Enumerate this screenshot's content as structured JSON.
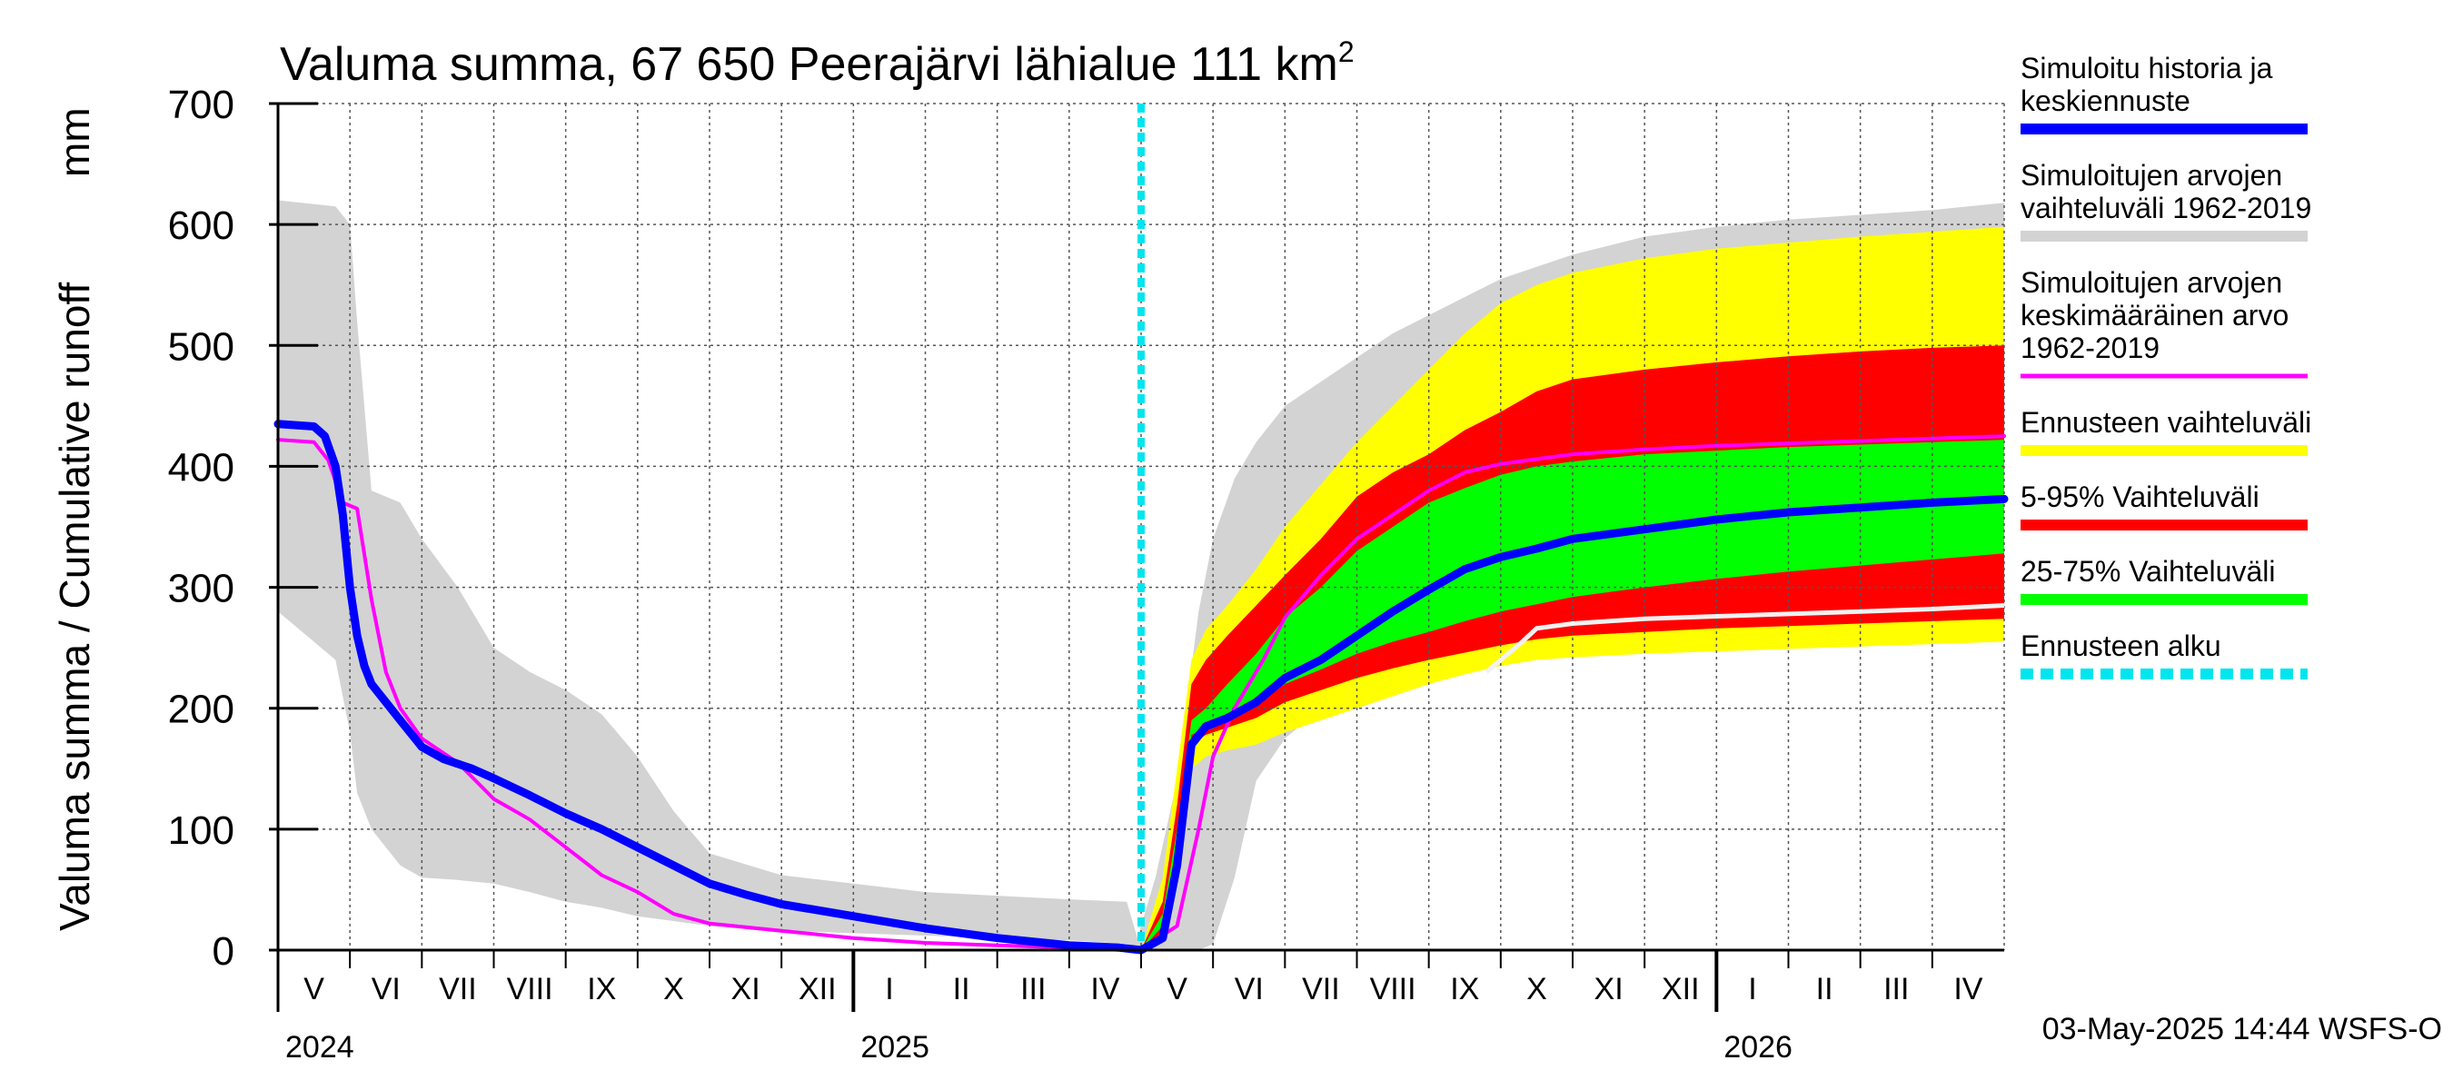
{
  "chart_data": {
    "type": "area",
    "title": "Valuma summa, 67 650 Peerajärvi lähialue 111 km²",
    "title_main": "Valuma summa, 67 650 Peerajärvi lähialue 111 km",
    "title_sup": "2",
    "ylabel": "Valuma summa / Cumulative runoff",
    "yunit": "mm",
    "ylim": [
      0,
      700
    ],
    "yticks": [
      "0",
      "100",
      "200",
      "300",
      "400",
      "500",
      "600",
      "700"
    ],
    "xlim": [
      0,
      24
    ],
    "grid": true,
    "legend_position": "right",
    "months": [
      {
        "label": "V",
        "start": 0
      },
      {
        "label": "VI",
        "start": 1
      },
      {
        "label": "VII",
        "start": 2
      },
      {
        "label": "VIII",
        "start": 3
      },
      {
        "label": "IX",
        "start": 4
      },
      {
        "label": "X",
        "start": 5
      },
      {
        "label": "XI",
        "start": 6
      },
      {
        "label": "XII",
        "start": 7
      },
      {
        "label": "I",
        "start": 8
      },
      {
        "label": "II",
        "start": 9
      },
      {
        "label": "III",
        "start": 10
      },
      {
        "label": "IV",
        "start": 11
      },
      {
        "label": "V",
        "start": 12
      },
      {
        "label": "VI",
        "start": 13
      },
      {
        "label": "VII",
        "start": 14
      },
      {
        "label": "VIII",
        "start": 15
      },
      {
        "label": "IX",
        "start": 16
      },
      {
        "label": "X",
        "start": 17
      },
      {
        "label": "XI",
        "start": 18
      },
      {
        "label": "XII",
        "start": 19
      },
      {
        "label": "I",
        "start": 20
      },
      {
        "label": "II",
        "start": 21
      },
      {
        "label": "III",
        "start": 22
      },
      {
        "label": "IV",
        "start": 23
      }
    ],
    "years": [
      {
        "label": "2024",
        "at": 0
      },
      {
        "label": "2025",
        "at": 8
      },
      {
        "label": "2026",
        "at": 20
      }
    ],
    "forecast_start": 12,
    "series": [
      {
        "name": "Simuloitujen arvojen vaihteluväli 1962-2019",
        "kind": "band",
        "color": "#d3d3d3",
        "x": [
          0,
          0.8,
          1.0,
          1.1,
          1.3,
          1.7,
          2.0,
          2.5,
          3.0,
          3.5,
          4.0,
          4.5,
          5.0,
          5.5,
          6.0,
          7.0,
          8.0,
          9.0,
          10.0,
          11.0,
          11.8,
          11.95,
          12.2,
          12.5,
          12.8,
          13.0,
          13.3,
          13.6,
          14.0,
          14.5,
          15.0,
          15.5,
          16.0,
          16.5,
          17.0,
          17.5,
          18.0,
          19.0,
          20.0,
          21.0,
          22.0,
          23.0,
          24.0
        ],
        "upper": [
          620,
          615,
          600,
          520,
          380,
          370,
          340,
          300,
          250,
          230,
          215,
          195,
          160,
          115,
          80,
          62,
          55,
          48,
          45,
          42,
          40,
          10,
          60,
          140,
          280,
          340,
          390,
          420,
          450,
          470,
          490,
          510,
          525,
          540,
          555,
          565,
          575,
          590,
          598,
          604,
          608,
          612,
          618
        ],
        "lower": [
          280,
          240,
          180,
          130,
          100,
          70,
          60,
          58,
          55,
          48,
          40,
          35,
          28,
          24,
          20,
          16,
          14,
          12,
          10,
          8,
          5,
          0,
          0,
          0,
          0,
          5,
          60,
          140,
          175,
          200,
          215,
          230,
          240,
          245,
          250,
          253,
          256,
          260,
          263,
          266,
          269,
          272,
          275
        ]
      },
      {
        "name": "Ennusteen vaihteluväli",
        "kind": "band",
        "color": "#ffff00",
        "x": [
          12.0,
          12.3,
          12.5,
          12.7,
          12.9,
          13.2,
          13.6,
          14.0,
          14.5,
          15.0,
          15.5,
          16.0,
          16.5,
          17.0,
          17.5,
          18.0,
          19.0,
          20.0,
          21.0,
          22.0,
          23.0,
          24.0
        ],
        "upper": [
          0,
          60,
          150,
          240,
          265,
          285,
          315,
          350,
          385,
          420,
          450,
          480,
          510,
          535,
          550,
          560,
          572,
          580,
          585,
          590,
          594,
          598
        ],
        "lower": [
          0,
          10,
          60,
          150,
          160,
          165,
          170,
          180,
          190,
          200,
          210,
          220,
          228,
          235,
          240,
          242,
          245,
          247,
          249,
          251,
          253,
          255
        ]
      },
      {
        "name": "5-95% Vaihteluväli",
        "kind": "band",
        "color": "#ff0000",
        "x": [
          12.0,
          12.3,
          12.5,
          12.7,
          12.9,
          13.2,
          13.6,
          14.0,
          14.5,
          15.0,
          15.5,
          16.0,
          16.5,
          17.0,
          17.5,
          18.0,
          19.0,
          20.0,
          21.0,
          22.0,
          23.0,
          24.0
        ],
        "upper": [
          0,
          40,
          120,
          220,
          240,
          260,
          285,
          310,
          340,
          375,
          395,
          410,
          430,
          445,
          462,
          472,
          480,
          486,
          491,
          495,
          498,
          500
        ],
        "lower": [
          0,
          15,
          80,
          170,
          178,
          184,
          192,
          205,
          215,
          225,
          233,
          240,
          246,
          252,
          257,
          260,
          263,
          266,
          268,
          270,
          272,
          274
        ]
      },
      {
        "name": "25-75% Vaihteluväli",
        "kind": "band",
        "color": "#00ff00",
        "x": [
          12.0,
          12.3,
          12.5,
          12.7,
          12.9,
          13.2,
          13.6,
          14.0,
          14.5,
          15.0,
          15.5,
          16.0,
          16.5,
          17.0,
          17.5,
          18.0,
          19.0,
          20.0,
          21.0,
          22.0,
          23.0,
          24.0
        ],
        "upper": [
          0,
          30,
          100,
          190,
          200,
          220,
          245,
          275,
          300,
          330,
          350,
          370,
          382,
          393,
          400,
          404,
          410,
          413,
          416,
          418,
          420,
          422
        ],
        "lower": [
          0,
          20,
          90,
          178,
          183,
          193,
          205,
          220,
          232,
          245,
          255,
          263,
          272,
          280,
          286,
          292,
          300,
          307,
          313,
          318,
          323,
          328
        ]
      },
      {
        "name": "Simuloitujen arvojen keskimääräinen arvo 1962-2019",
        "kind": "line",
        "color": "#ff00ff",
        "x": [
          0,
          0.5,
          0.7,
          0.9,
          1.1,
          1.3,
          1.5,
          1.7,
          2.0,
          2.5,
          3.0,
          3.5,
          4.0,
          4.5,
          5.0,
          5.5,
          6.0,
          7.0,
          8.0,
          9.0,
          10.0,
          11.0,
          12.0,
          12.5,
          12.8,
          13.0,
          13.3,
          13.7,
          14.0,
          14.5,
          15.0,
          15.5,
          16.0,
          16.5,
          17.0,
          17.5,
          18.0,
          19.0,
          20.0,
          21.0,
          22.0,
          23.0,
          24.0
        ],
        "y": [
          422,
          420,
          405,
          370,
          365,
          290,
          230,
          200,
          175,
          155,
          125,
          108,
          85,
          62,
          48,
          30,
          22,
          16,
          10,
          6,
          4,
          2,
          1,
          20,
          100,
          160,
          200,
          240,
          275,
          310,
          340,
          360,
          380,
          395,
          402,
          406,
          410,
          414,
          417,
          419,
          421,
          423,
          425
        ]
      },
      {
        "name": "Ennusteen alku",
        "kind": "vline",
        "color": "#00e5ee",
        "at": 12
      },
      {
        "name": "Simuloitu historia ja keskiennuste",
        "kind": "line",
        "color": "#0000ff",
        "x": [
          0,
          0.5,
          0.65,
          0.8,
          0.9,
          1.0,
          1.1,
          1.2,
          1.3,
          1.5,
          1.7,
          2.0,
          2.3,
          2.7,
          3.0,
          3.5,
          4.0,
          4.5,
          5.0,
          5.5,
          6.0,
          6.5,
          7.0,
          8.0,
          9.0,
          10.0,
          11.0,
          11.7,
          12.0,
          12.3,
          12.5,
          12.7,
          12.9,
          13.2,
          13.6,
          14.0,
          14.5,
          15.0,
          15.5,
          16.0,
          16.5,
          17.0,
          17.5,
          18.0,
          19.0,
          20.0,
          21.0,
          22.0,
          23.0,
          24.0
        ],
        "y": [
          435,
          433,
          425,
          400,
          360,
          300,
          260,
          235,
          220,
          205,
          190,
          168,
          158,
          150,
          142,
          128,
          113,
          100,
          85,
          70,
          55,
          46,
          38,
          28,
          18,
          10,
          4,
          2,
          0,
          10,
          70,
          170,
          185,
          192,
          205,
          225,
          240,
          260,
          280,
          298,
          315,
          325,
          332,
          340,
          348,
          356,
          362,
          366,
          370,
          373
        ]
      }
    ],
    "extra_lines": [
      {
        "name": "forecast-lower-trace",
        "color": "#f2f2f2",
        "x": [
          16.8,
          17.3,
          17.5,
          18.0,
          19.0,
          20.0,
          21.0,
          22.0,
          23.0,
          24.0
        ],
        "y": [
          230,
          255,
          266,
          270,
          274,
          276,
          278,
          280,
          282,
          285
        ]
      }
    ],
    "legend": [
      {
        "lines": [
          "Simuloitu historia ja",
          "keskiennuste"
        ],
        "color": "#0000ff",
        "style": "solid"
      },
      {
        "lines": [
          "Simuloitujen arvojen",
          "vaihteluväli 1962-2019"
        ],
        "color": "#d3d3d3",
        "style": "solid"
      },
      {
        "lines": [
          "Simuloitujen arvojen",
          "keskimääräinen arvo",
          "   1962-2019"
        ],
        "color": "#ff00ff",
        "style": "thin"
      },
      {
        "lines": [
          "Ennusteen vaihteluväli"
        ],
        "color": "#ffff00",
        "style": "solid"
      },
      {
        "lines": [
          "5-95% Vaihteluväli"
        ],
        "color": "#ff0000",
        "style": "solid"
      },
      {
        "lines": [
          "25-75% Vaihteluväli"
        ],
        "color": "#00ff00",
        "style": "solid"
      },
      {
        "lines": [
          "Ennusteen alku"
        ],
        "color": "#00e5ee",
        "style": "dashed"
      }
    ],
    "footer": "03-May-2025 14:44 WSFS-O"
  }
}
